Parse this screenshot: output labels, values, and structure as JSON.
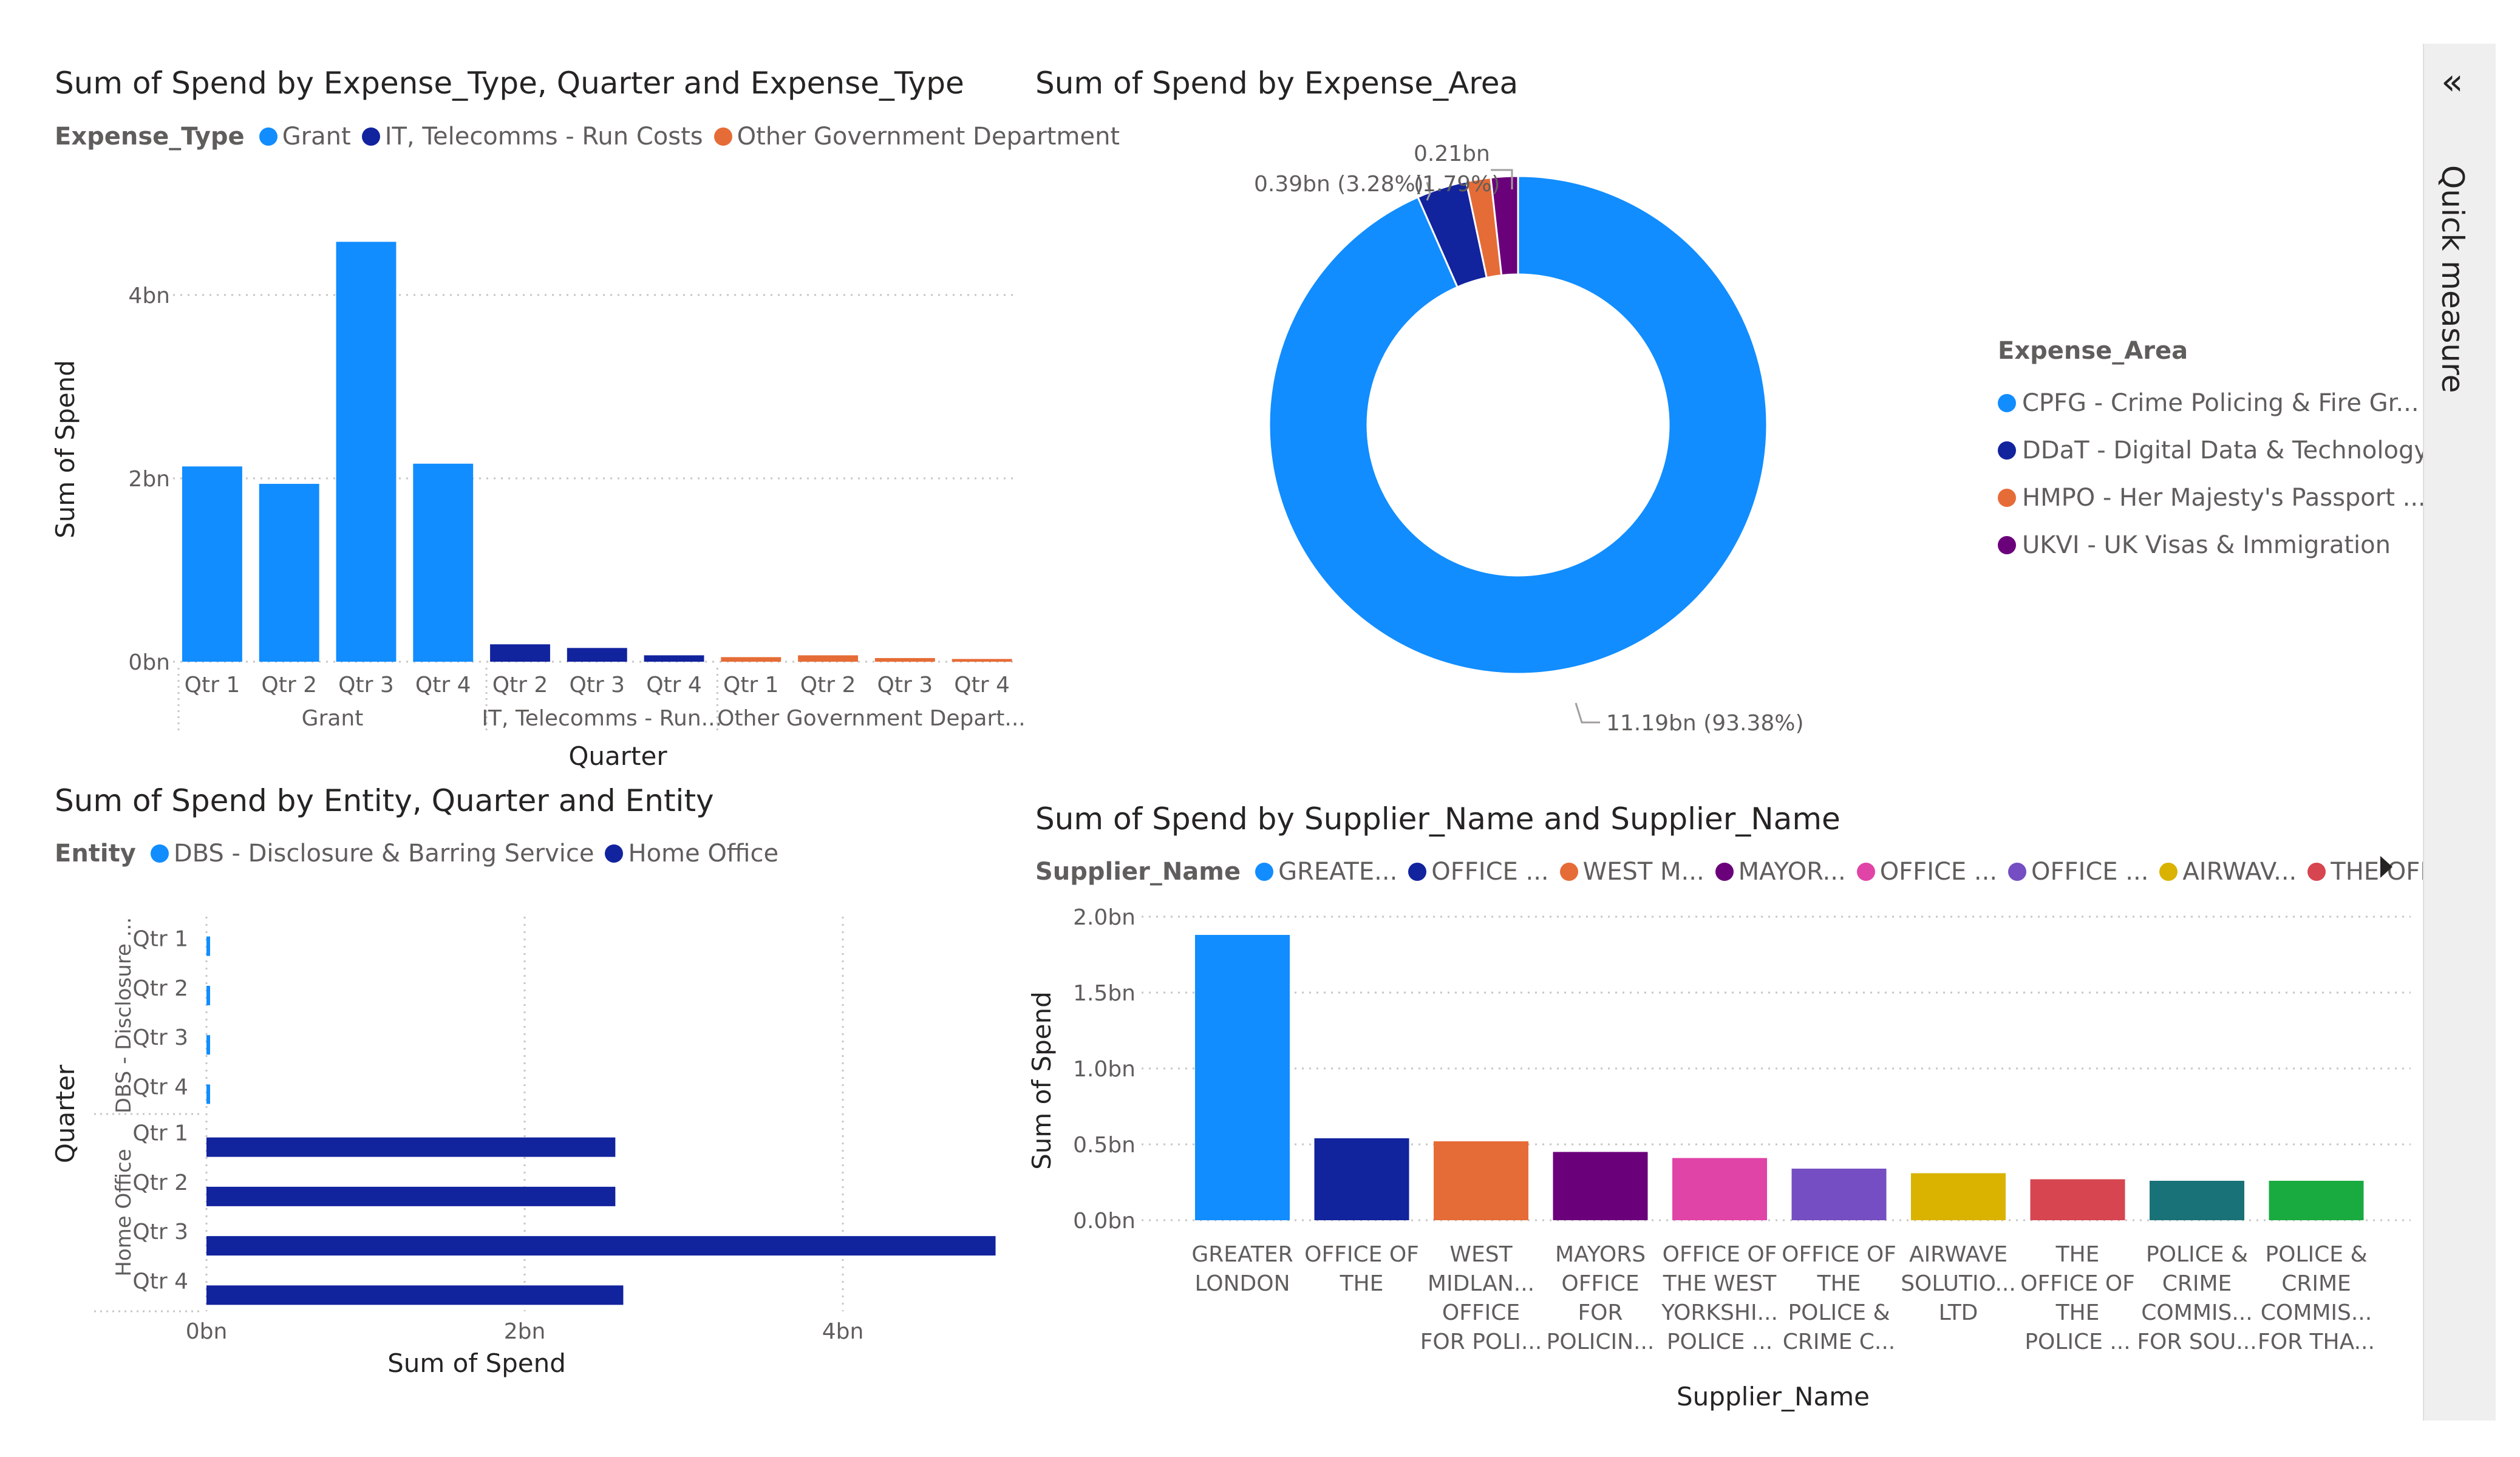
{
  "colors": {
    "blue": "#118DFF",
    "navy": "#12239E",
    "orange": "#E66C37",
    "purple": "#6B007B",
    "pink": "#E044A7",
    "violet": "#744EC2",
    "gold": "#D9B300",
    "red": "#D64550",
    "teal": "#197278",
    "green": "#1AAB40",
    "grid": "#c8c6c4",
    "text": "#605e5c"
  },
  "side_panel": {
    "label": "Quick measure",
    "icon": "double-chevron-left-icon"
  },
  "chart_data": [
    {
      "id": "c1",
      "type": "bar",
      "title": "Sum of Spend by Expense_Type, Quarter and Expense_Type",
      "legend_title": "Expense_Type",
      "legend": [
        "Grant",
        "IT, Telecomms - Run Costs",
        "Other Government Department"
      ],
      "legend_colors": [
        "#118DFF",
        "#12239E",
        "#E66C37"
      ],
      "xlabel": "Quarter",
      "ylabel": "Sum of Spend",
      "ylim": [
        0,
        4.9
      ],
      "yticks": [
        0,
        2,
        4
      ],
      "ytick_labels": [
        "0bn",
        "2bn",
        "4bn"
      ],
      "groups": [
        "Grant",
        "IT, Telecomms - Run...",
        "Other Government Depart..."
      ],
      "bars": [
        {
          "q": "Qtr 1",
          "g": 0,
          "v": 2.13
        },
        {
          "q": "Qtr 2",
          "g": 0,
          "v": 1.94
        },
        {
          "q": "Qtr 3",
          "g": 0,
          "v": 4.58
        },
        {
          "q": "Qtr 4",
          "g": 0,
          "v": 2.16
        },
        {
          "q": "Qtr 2",
          "g": 1,
          "v": 0.19
        },
        {
          "q": "Qtr 3",
          "g": 1,
          "v": 0.15
        },
        {
          "q": "Qtr 4",
          "g": 1,
          "v": 0.07
        },
        {
          "q": "Qtr 1",
          "g": 2,
          "v": 0.05
        },
        {
          "q": "Qtr 2",
          "g": 2,
          "v": 0.07
        },
        {
          "q": "Qtr 3",
          "g": 2,
          "v": 0.04
        },
        {
          "q": "Qtr 4",
          "g": 2,
          "v": 0.03
        }
      ]
    },
    {
      "id": "c2",
      "type": "pie",
      "title": "Sum of Spend by Expense_Area",
      "legend_title": "Expense_Area",
      "slices": [
        {
          "name": "CPFG - Crime Policing & Fire Gr...",
          "value": 11.19,
          "pct": 93.38,
          "color": "#118DFF",
          "label": "11.19bn (93.38%)"
        },
        {
          "name": "DDaT - Digital Data & Technology",
          "value": 0.39,
          "pct": 3.28,
          "color": "#12239E",
          "label": "0.39bn (3.28%)"
        },
        {
          "name": "HMPO - Her Majesty's Passport ...",
          "value": 0.19,
          "pct": 1.56,
          "color": "#E66C37",
          "label": ""
        },
        {
          "name": "UKVI - UK Visas & Immigration",
          "value": 0.21,
          "pct": 1.79,
          "color": "#6B007B",
          "label": "0.21bn"
        }
      ],
      "extra_label": "(1.79%)"
    },
    {
      "id": "c3",
      "type": "bar",
      "orientation": "horizontal",
      "title": "Sum of Spend by Entity, Quarter and Entity",
      "legend_title": "Entity",
      "legend": [
        "DBS - Disclosure & Barring Service",
        "Home Office"
      ],
      "legend_colors": [
        "#118DFF",
        "#12239E"
      ],
      "xlabel": "Sum of Spend",
      "ylabel": "Quarter",
      "xlim": [
        0,
        5.0
      ],
      "xticks": [
        0,
        2,
        4
      ],
      "xtick_labels": [
        "0bn",
        "2bn",
        "4bn"
      ],
      "groups": [
        "DBS - Disclosure ...",
        "Home Office"
      ],
      "bars": [
        {
          "q": "Qtr 1",
          "g": 0,
          "v": 0.02
        },
        {
          "q": "Qtr 2",
          "g": 0,
          "v": 0.02
        },
        {
          "q": "Qtr 3",
          "g": 0,
          "v": 0.01
        },
        {
          "q": "Qtr 4",
          "g": 0,
          "v": 0.01
        },
        {
          "q": "Qtr 1",
          "g": 1,
          "v": 2.57
        },
        {
          "q": "Qtr 2",
          "g": 1,
          "v": 2.57
        },
        {
          "q": "Qtr 3",
          "g": 1,
          "v": 4.96
        },
        {
          "q": "Qtr 4",
          "g": 1,
          "v": 2.62
        }
      ]
    },
    {
      "id": "c4",
      "type": "bar",
      "title": "Sum of Spend by Supplier_Name and Supplier_Name",
      "legend_title": "Supplier_Name",
      "legend": [
        "GREATE...",
        "OFFICE ...",
        "WEST M...",
        "MAYOR...",
        "OFFICE ...",
        "OFFICE ...",
        "AIRWAV...",
        "THE OFF..."
      ],
      "legend_colors": [
        "#118DFF",
        "#12239E",
        "#E66C37",
        "#6B007B",
        "#E044A7",
        "#744EC2",
        "#D9B300",
        "#D64550"
      ],
      "xlabel": "Supplier_Name",
      "ylabel": "Sum of Spend",
      "ylim": [
        0,
        2.0
      ],
      "yticks": [
        0,
        0.5,
        1.0,
        1.5,
        2.0
      ],
      "ytick_labels": [
        "0.0bn",
        "0.5bn",
        "1.0bn",
        "1.5bn",
        "2.0bn"
      ],
      "categories": [
        [
          "GREATER",
          "LONDON"
        ],
        [
          "OFFICE OF",
          "THE"
        ],
        [
          "WEST",
          "MIDLAN...",
          "OFFICE",
          "FOR POLI..."
        ],
        [
          "MAYORS",
          "OFFICE",
          "FOR",
          "POLICIN..."
        ],
        [
          "OFFICE OF",
          "THE WEST",
          "YORKSHI...",
          "POLICE ..."
        ],
        [
          "OFFICE OF",
          "THE",
          "POLICE &",
          "CRIME C..."
        ],
        [
          "AIRWAVE",
          "SOLUTIO...",
          "LTD"
        ],
        [
          "THE",
          "OFFICE OF",
          "THE",
          "POLICE ..."
        ],
        [
          "POLICE &",
          "CRIME",
          "COMMIS...",
          "FOR SOU..."
        ],
        [
          "POLICE &",
          "CRIME",
          "COMMIS...",
          "FOR THA..."
        ]
      ],
      "values": [
        1.88,
        0.54,
        0.52,
        0.45,
        0.41,
        0.34,
        0.31,
        0.27,
        0.26,
        0.26
      ],
      "bar_colors": [
        "#118DFF",
        "#12239E",
        "#E66C37",
        "#6B007B",
        "#E044A7",
        "#744EC2",
        "#D9B300",
        "#D64550",
        "#197278",
        "#1AAB40"
      ]
    }
  ]
}
